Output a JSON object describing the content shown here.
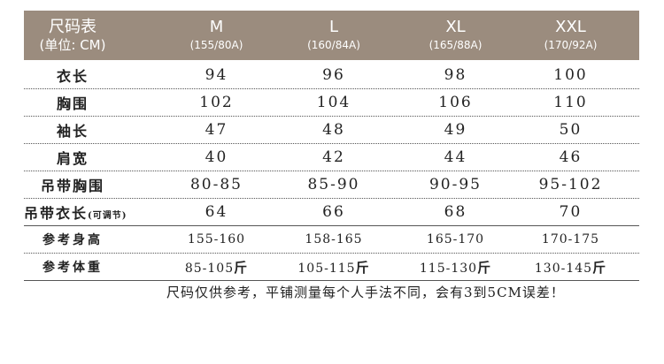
{
  "header": {
    "title": "尺码表",
    "unit": "(单位: CM)",
    "sizes": [
      {
        "size": "M",
        "spec": "(155/80A)"
      },
      {
        "size": "L",
        "spec": "(160/84A)"
      },
      {
        "size": "XL",
        "spec": "(165/88A)"
      },
      {
        "size": "XXL",
        "spec": "(170/92A)"
      }
    ]
  },
  "rows": [
    {
      "label": "衣长",
      "values": [
        "94",
        "96",
        "98",
        "100"
      ]
    },
    {
      "label": "胸围",
      "values": [
        "102",
        "104",
        "106",
        "110"
      ]
    },
    {
      "label": "袖长",
      "values": [
        "47",
        "48",
        "49",
        "50"
      ]
    },
    {
      "label": "肩宽",
      "values": [
        "40",
        "42",
        "44",
        "46"
      ]
    },
    {
      "label": "吊带胸围",
      "values": [
        "80-85",
        "85-90",
        "90-95",
        "95-102"
      ]
    },
    {
      "label": "吊带衣长",
      "sublabel": "(可调节)",
      "values": [
        "64",
        "66",
        "68",
        "70"
      ]
    }
  ],
  "reference": [
    {
      "label": "参考身高",
      "values": [
        "155-160",
        "158-165",
        "165-170",
        "170-175"
      ]
    },
    {
      "label": "参考体重",
      "unit": "斤",
      "values": [
        "85-105",
        "105-115",
        "115-130",
        "130-145"
      ]
    }
  ],
  "note": "尺码仅供参考，平铺测量每个人手法不同，会有3到5CM误差！",
  "colors": {
    "header_bg": "#9b8c7e",
    "header_text": "#ffffff"
  }
}
